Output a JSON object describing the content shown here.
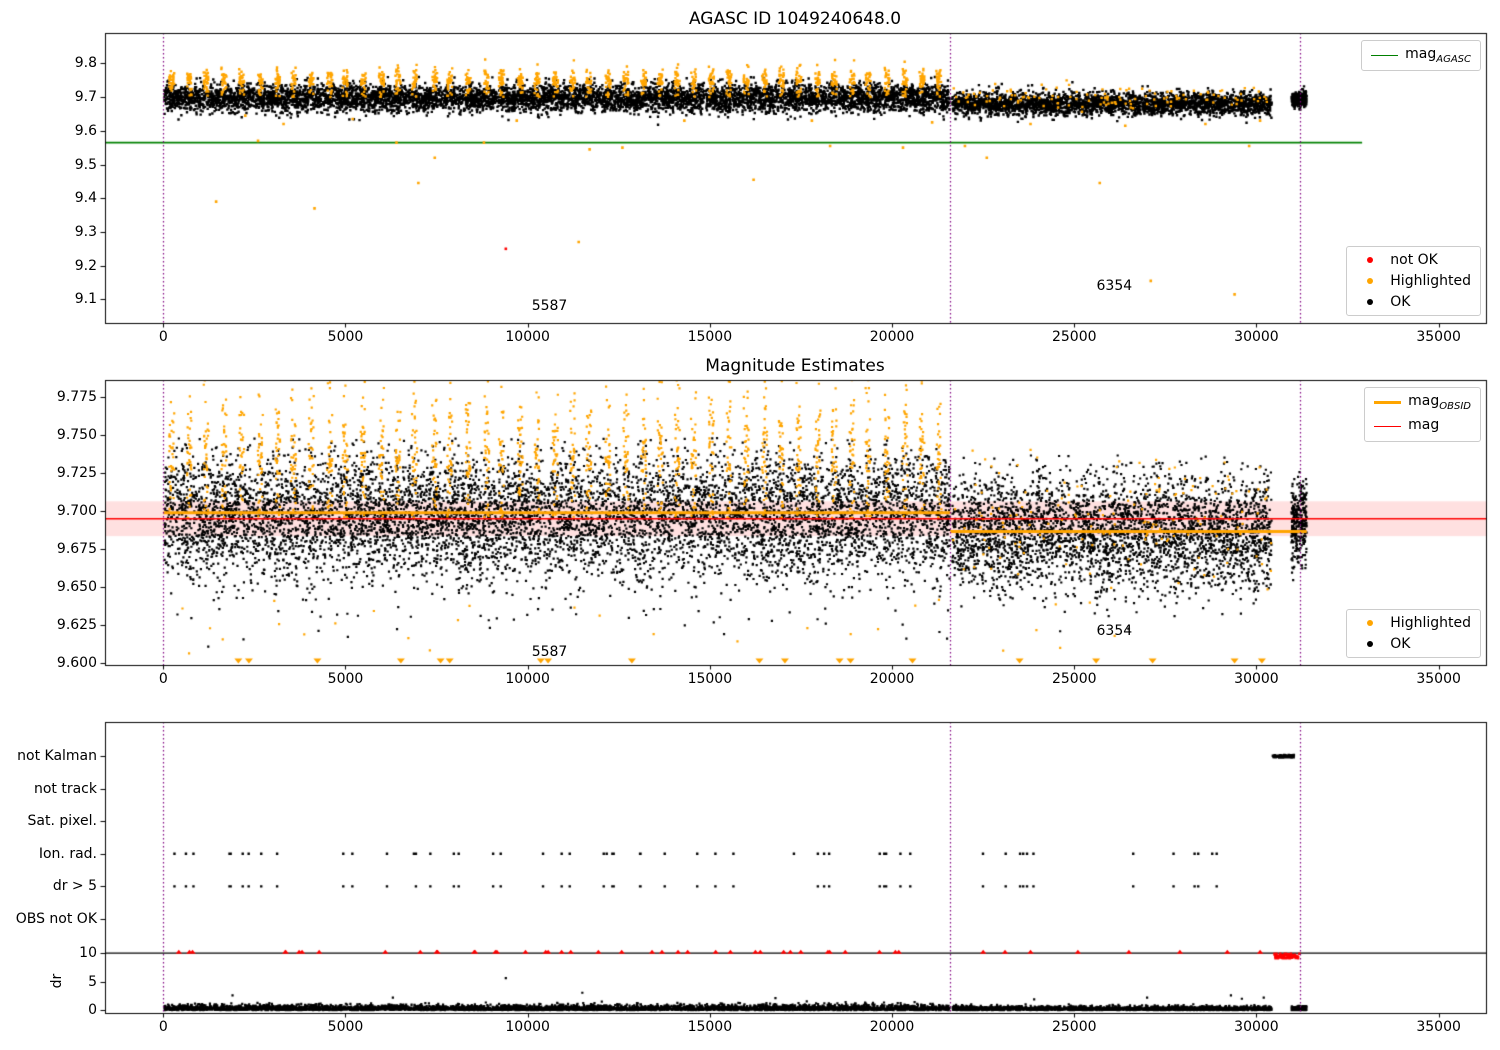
{
  "colors": {
    "green": "#008000",
    "red": "#FF0000",
    "orange": "#FFA500",
    "black": "#000000",
    "purple": "#800080",
    "band_pink": "rgba(255,0,0,0.12)"
  },
  "legends": {
    "top_line": {
      "prefix": "mag",
      "sub": "AGASC"
    },
    "top_markers": [
      {
        "label": "not OK",
        "color_key": "red"
      },
      {
        "label": "Highlighted",
        "color_key": "orange"
      },
      {
        "label": "OK",
        "color_key": "black"
      }
    ],
    "mid_lines": [
      {
        "prefix": "mag",
        "sub": "OBSID"
      },
      {
        "prefix": "mag",
        "sub": ""
      }
    ],
    "mid_markers": [
      {
        "label": "Highlighted",
        "color_key": "orange"
      },
      {
        "label": "OK",
        "color_key": "black"
      }
    ]
  },
  "chart_data": [
    {
      "id": "top",
      "type": "scatter",
      "title": "AGASC ID 1049240648.0",
      "x_range": [
        -1600,
        36300
      ],
      "y_range": [
        9.03,
        9.89
      ],
      "x_ticks": [
        0,
        5000,
        10000,
        15000,
        20000,
        25000,
        30000,
        35000
      ],
      "y_ticks": [
        9.1,
        9.2,
        9.3,
        9.4,
        9.5,
        9.6,
        9.7,
        9.8
      ],
      "y_tick_decimals": 1,
      "vlines": {
        "xs": [
          0,
          21600,
          31200
        ],
        "color": "#800080"
      },
      "hlines": [
        {
          "y": 9.565,
          "x0": -1600,
          "x1": 32900,
          "color": "#008000",
          "width": 1.6,
          "name": "mag_AGASC"
        }
      ],
      "annotations": [
        {
          "text": "5587",
          "x": 10600,
          "y": 9.08
        },
        {
          "text": "6354",
          "x": 26100,
          "y": 9.14
        }
      ],
      "series": [
        {
          "name": "OK",
          "color": "#000000",
          "size": 2.4,
          "gen": "gauss_band",
          "seed": 11,
          "segments": [
            {
              "x0": 30,
              "x1": 21580,
              "n": 6500,
              "mean": 9.697,
              "std": 0.021,
              "ymin": 9.615,
              "ymax": 9.762
            },
            {
              "x0": 21650,
              "x1": 30420,
              "n": 2800,
              "mean": 9.68,
              "std": 0.017,
              "ymin": 9.6,
              "ymax": 9.744
            },
            {
              "x0": 30960,
              "x1": 31380,
              "n": 260,
              "mean": 9.692,
              "std": 0.012,
              "ymin": 9.64,
              "ymax": 9.74
            }
          ]
        },
        {
          "name": "Highlighted bursts",
          "color": "#FFA500",
          "size": 2.4,
          "gen": "bursts",
          "seed": 21,
          "burst": {
            "count": 45,
            "x_start": 240,
            "spacing": 478,
            "jitter": 90,
            "width": 140,
            "pts_top": 20,
            "y_base": 9.738,
            "y_scale": 0.023,
            "y_max": 9.812,
            "pts_col": 8,
            "col_y0": 9.7,
            "col_y1": 9.742
          }
        },
        {
          "name": "Highlighted obsid 6354",
          "color": "#FFA500",
          "size": 2.4,
          "gen": "gauss_band",
          "seed": 31,
          "segments": [
            {
              "x0": 21650,
              "x1": 30420,
              "n": 130,
              "mean": 9.699,
              "std": 0.018,
              "ymin": 9.65,
              "ymax": 9.75
            }
          ]
        },
        {
          "name": "Highlighted outliers",
          "color": "#FFA500",
          "size": 2.6,
          "points": [
            [
              1450,
              9.39
            ],
            [
              2250,
              9.645
            ],
            [
              2600,
              9.57
            ],
            [
              3300,
              9.62
            ],
            [
              4150,
              9.37
            ],
            [
              5200,
              9.635
            ],
            [
              6400,
              9.565
            ],
            [
              7000,
              9.445
            ],
            [
              7450,
              9.52
            ],
            [
              8800,
              9.565
            ],
            [
              9700,
              9.63
            ],
            [
              11400,
              9.27
            ],
            [
              11700,
              9.545
            ],
            [
              12600,
              9.55
            ],
            [
              14300,
              9.63
            ],
            [
              16200,
              9.455
            ],
            [
              17800,
              9.63
            ],
            [
              18300,
              9.555
            ],
            [
              20300,
              9.55
            ],
            [
              21100,
              9.625
            ],
            [
              22000,
              9.555
            ],
            [
              22600,
              9.52
            ],
            [
              23800,
              9.62
            ],
            [
              25700,
              9.445
            ],
            [
              26400,
              9.615
            ],
            [
              27100,
              9.155
            ],
            [
              28600,
              9.62
            ],
            [
              29400,
              9.115
            ],
            [
              29800,
              9.555
            ],
            [
              30100,
              9.63
            ]
          ]
        },
        {
          "name": "not OK",
          "color": "#FF0000",
          "size": 2.6,
          "points": [
            [
              9400,
              9.25
            ]
          ]
        }
      ]
    },
    {
      "id": "middle",
      "type": "scatter",
      "title": "Magnitude Estimates",
      "x_range": [
        -1600,
        36300
      ],
      "y_range": [
        9.5985,
        9.7865
      ],
      "x_ticks": [
        0,
        5000,
        10000,
        15000,
        20000,
        25000,
        30000,
        35000
      ],
      "y_ticks": [
        9.6,
        9.625,
        9.65,
        9.675,
        9.7,
        9.725,
        9.75,
        9.775
      ],
      "y_tick_decimals": 3,
      "vlines": {
        "xs": [
          0,
          21600,
          31200
        ],
        "color": "#800080"
      },
      "band": {
        "y0": 9.6835,
        "y1": 9.7065,
        "color": "rgba(255,0,0,0.12)",
        "name": "mag uncertainty band"
      },
      "hlines": [
        {
          "y": 9.695,
          "x0": null,
          "x1": null,
          "color": "#FF0000",
          "width": 1.6,
          "over": true,
          "name": "mag"
        }
      ],
      "step_lines": [
        {
          "x0": 0,
          "x1": 21600,
          "y": 9.699,
          "color": "#FFA500",
          "width": 3,
          "name": "mag_OBSID 5587"
        },
        {
          "x0": 21600,
          "x1": 31380,
          "y": 9.6865,
          "color": "#FFA500",
          "width": 3,
          "name": "mag_OBSID 6354"
        }
      ],
      "annotations": [
        {
          "text": "5587",
          "x": 10600,
          "y": 9.607
        },
        {
          "text": "6354",
          "x": 26100,
          "y": 9.621
        }
      ],
      "series": [
        {
          "name": "OK",
          "color": "#000000",
          "size": 2.2,
          "gen": "gauss_band",
          "seed": 12,
          "segments": [
            {
              "x0": 30,
              "x1": 21580,
              "n": 7500,
              "mean": 9.6965,
              "std": 0.0205,
              "ymin": 9.641,
              "ymax": 9.7485
            },
            {
              "x0": 21650,
              "x1": 30420,
              "n": 3300,
              "mean": 9.6865,
              "std": 0.019,
              "ymin": 9.633,
              "ymax": 9.737
            },
            {
              "x0": 30960,
              "x1": 31380,
              "n": 300,
              "mean": 9.691,
              "std": 0.014,
              "ymin": 9.648,
              "ymax": 9.73
            }
          ]
        },
        {
          "name": "OK low tail",
          "color": "#000000",
          "size": 2.2,
          "gen": "gauss_band",
          "seed": 42,
          "segments": [
            {
              "x0": 100,
              "x1": 30400,
              "n": 90,
              "mean": 9.638,
              "std": 0.012,
              "ymin": 9.602,
              "ymax": 9.655
            }
          ]
        },
        {
          "name": "Highlighted bursts",
          "color": "#FFA500",
          "size": 2.2,
          "gen": "bursts",
          "seed": 21,
          "burst": {
            "count": 45,
            "x_start": 240,
            "spacing": 478,
            "jitter": 90,
            "width": 140,
            "pts_top": 26,
            "y_base": 9.726,
            "y_scale": 0.027,
            "y_max": 9.7885,
            "pts_col": 10,
            "col_y0": 9.695,
            "col_y1": 9.728
          }
        },
        {
          "name": "Highlighted obsid 6354",
          "color": "#FFA500",
          "size": 2.2,
          "gen": "gauss_band",
          "seed": 32,
          "segments": [
            {
              "x0": 21650,
              "x1": 30420,
              "n": 160,
              "mean": 9.697,
              "std": 0.021,
              "ymin": 9.63,
              "ymax": 9.745
            }
          ]
        },
        {
          "name": "Highlighted low",
          "color": "#FFA500",
          "size": 2.2,
          "gen": "gauss_band",
          "seed": 52,
          "segments": [
            {
              "x0": 300,
              "x1": 30300,
              "n": 28,
              "mean": 9.625,
              "std": 0.015,
              "ymin": 9.602,
              "ymax": 9.655
            }
          ]
        },
        {
          "name": "clipped below axis",
          "color": "#FFA500",
          "marker": "tri_down",
          "size": 4,
          "y": 9.6015,
          "xs": [
            2060,
            2350,
            4230,
            6520,
            7610,
            7860,
            10360,
            10560,
            12860,
            16360,
            17060,
            18560,
            18860,
            20560,
            23500,
            25600,
            27150,
            29400,
            30150
          ]
        }
      ]
    },
    {
      "id": "bottom",
      "type": "scatter",
      "title": "",
      "ylabel": "dr",
      "x_range": [
        -1600,
        36300
      ],
      "y_range": [
        -0.5,
        50.5
      ],
      "x_ticks": [
        0,
        5000,
        10000,
        15000,
        20000,
        25000,
        30000,
        35000
      ],
      "y_ticks": [
        0,
        5,
        10
      ],
      "y_tick_decimals": 0,
      "categories": [
        {
          "label": "not Kalman",
          "y": 44.5
        },
        {
          "label": "not track",
          "y": 38.8
        },
        {
          "label": "Sat. pixel.",
          "y": 33.1
        },
        {
          "label": "Ion. rad.",
          "y": 27.4
        },
        {
          "label": "dr > 5",
          "y": 21.7
        },
        {
          "label": "OBS not OK",
          "y": 16
        }
      ],
      "vlines": {
        "xs": [
          0,
          21600,
          31200
        ],
        "color": "#800080"
      },
      "hlines": [
        {
          "y": 10,
          "x0": null,
          "x1": null,
          "color": "#000000",
          "width": 1.2,
          "name": "dr clip level"
        }
      ],
      "annotations": [],
      "series": [
        {
          "name": "dr values",
          "color": "#000000",
          "size": 2.2,
          "gen": "halfnorm",
          "seed": 13,
          "segments": [
            {
              "x0": 30,
              "x1": 21580,
              "n": 5200,
              "scale": 0.42,
              "ymax": 2.4
            },
            {
              "x0": 21650,
              "x1": 30420,
              "n": 2300,
              "scale": 0.32,
              "ymax": 1.9
            },
            {
              "x0": 30960,
              "x1": 31380,
              "n": 220,
              "scale": 0.3,
              "ymax": 1.5
            }
          ]
        },
        {
          "name": "dr outliers",
          "color": "#000000",
          "size": 2.2,
          "points": [
            [
              9400,
              5.6
            ],
            [
              11500,
              3.05
            ],
            [
              1900,
              2.6
            ],
            [
              6300,
              2.2
            ],
            [
              16800,
              2.1
            ],
            [
              23900,
              1.9
            ],
            [
              27000,
              2.2
            ],
            [
              29300,
              2.6
            ],
            [
              29600,
              2.0
            ],
            [
              30200,
              2.2
            ]
          ]
        },
        {
          "name": "Ion. rad. flags",
          "color": "#000000",
          "size": 2.4,
          "gen": "row_xs",
          "seed": 14,
          "y": 27.4,
          "range": {
            "x0": 300,
            "x1": 30350,
            "n": 55
          }
        },
        {
          "name": "dr > 5 flags",
          "color": "#000000",
          "size": 2.4,
          "gen": "row_xs",
          "seed": 14,
          "y": 21.7,
          "range": {
            "x0": 300,
            "x1": 30350,
            "n": 55
          },
          "drop": 0.15
        },
        {
          "name": "not Kalman cluster",
          "color": "#000000",
          "size": 2.6,
          "gen": "cluster",
          "seed": 15,
          "cluster": {
            "x0": 30440,
            "x1": 31040,
            "n": 80,
            "y": 44.5,
            "jitter": 0.2
          }
        },
        {
          "name": "dr clipped at 10",
          "color": "#FF0000",
          "marker": "tri_up",
          "size": 3.2,
          "gen": "row_xs",
          "seed": 16,
          "y": 10.15,
          "range": {
            "x0": 300,
            "x1": 21500,
            "n": 40
          },
          "extra_xs": [
            22500,
            23100,
            23800,
            25100,
            26500,
            27900,
            29200,
            30100
          ]
        },
        {
          "name": "red cluster near end",
          "color": "#FF0000",
          "size": 2.4,
          "gen": "cluster",
          "seed": 17,
          "cluster": {
            "x0": 30480,
            "x1": 31180,
            "n": 90,
            "y": 9.5,
            "jitter": 0.45
          }
        }
      ]
    }
  ]
}
